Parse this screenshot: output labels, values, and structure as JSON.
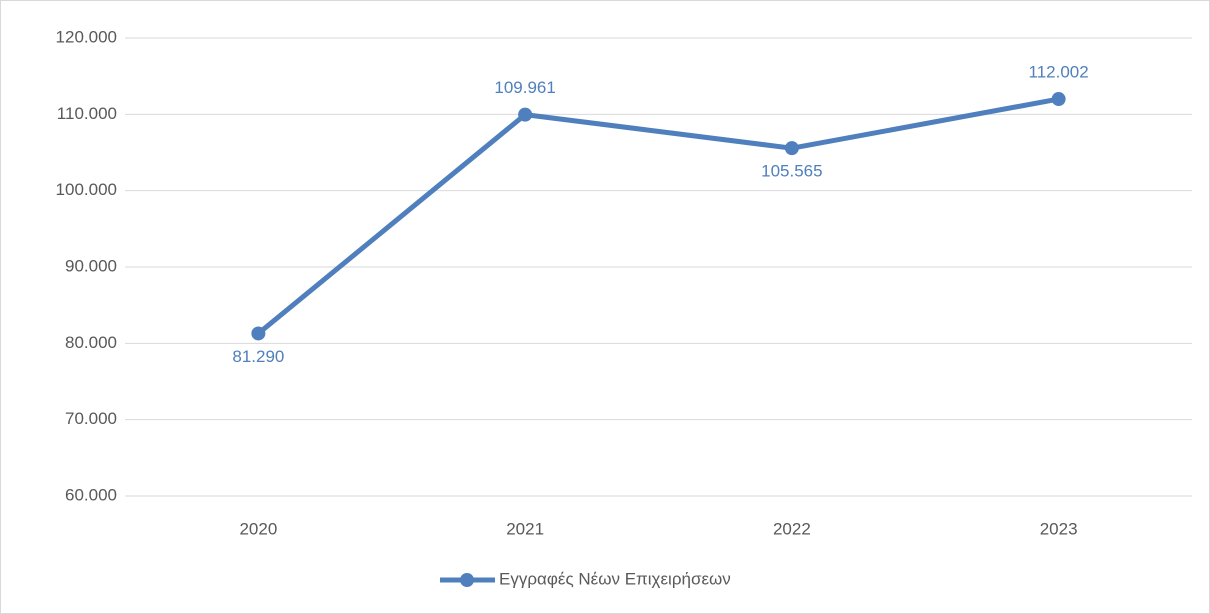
{
  "chart_data": {
    "type": "line",
    "categories": [
      "2020",
      "2021",
      "2022",
      "2023"
    ],
    "series": [
      {
        "name": "Εγγραφές Νέων Επιχειρήσεων",
        "color": "#4f7fbd",
        "values": [
          81290,
          109961,
          105565,
          112002
        ],
        "value_labels": [
          "81.290",
          "109.961",
          "105.565",
          "112.002"
        ]
      }
    ],
    "ylim": [
      60000,
      120000
    ],
    "yticks": [
      {
        "value": 60000,
        "label": "60.000"
      },
      {
        "value": 70000,
        "label": "70.000"
      },
      {
        "value": 80000,
        "label": "80.000"
      },
      {
        "value": 90000,
        "label": "90.000"
      },
      {
        "value": 100000,
        "label": "100.000"
      },
      {
        "value": 110000,
        "label": "110.000"
      },
      {
        "value": 120000,
        "label": "120.000"
      }
    ],
    "grid": true,
    "legend": "bottom"
  }
}
